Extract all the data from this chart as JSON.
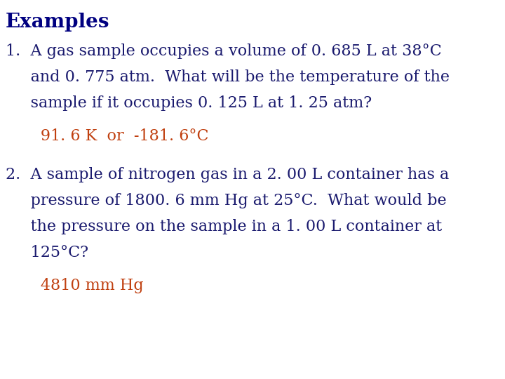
{
  "title": "Examples",
  "title_color": "#000080",
  "title_fontsize": 20,
  "background_color": "#ffffff",
  "text_color": "#1a1a6e",
  "answer_color": "#c04010",
  "body_fontsize": 16,
  "answer_fontsize": 16,
  "q1_lines": [
    "1.  A gas sample occupies a volume of 0. 685 L at 38°C",
    "     and 0. 775 atm.  What will be the temperature of the",
    "     sample if it occupies 0. 125 L at 1. 25 atm?"
  ],
  "q1_answer": "       91. 6 K  or  -181. 6°C",
  "q2_lines": [
    "2.  A sample of nitrogen gas in a 2. 00 L container has a",
    "     pressure of 1800. 6 mm Hg at 25°C.  What would be",
    "     the pressure on the sample in a 1. 00 L container at",
    "     125°C?"
  ],
  "q2_answer": "       4810 mm Hg"
}
